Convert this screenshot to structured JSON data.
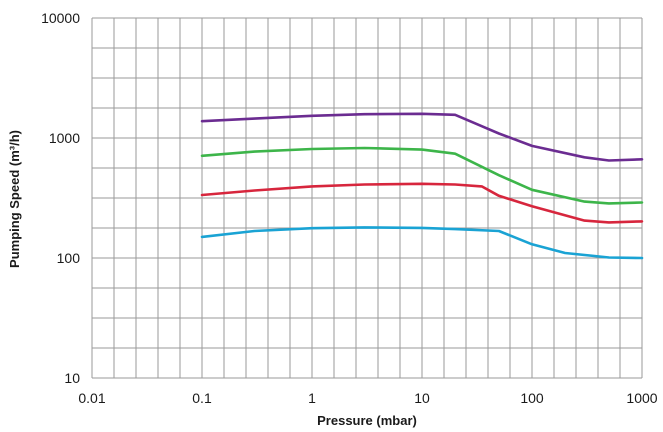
{
  "chart_data": {
    "type": "line",
    "xlabel": "Pressure (mbar)",
    "ylabel": "Pumping Speed (m³/h)",
    "xscale": "log",
    "yscale": "log",
    "xlim": [
      0.01,
      1000
    ],
    "ylim": [
      10,
      10000
    ],
    "grid": true,
    "x_ticks": [
      "0.01",
      "0.1",
      "1",
      "10",
      "100",
      "1000"
    ],
    "y_ticks": [
      "10",
      "100",
      "1000",
      "10000"
    ],
    "series": [
      {
        "color": "#6b2c91",
        "points": [
          [
            0.1,
            1380
          ],
          [
            0.3,
            1450
          ],
          [
            1,
            1530
          ],
          [
            3,
            1580
          ],
          [
            10,
            1590
          ],
          [
            20,
            1560
          ],
          [
            50,
            1090
          ],
          [
            100,
            860
          ],
          [
            300,
            690
          ],
          [
            500,
            650
          ],
          [
            1000,
            665
          ]
        ]
      },
      {
        "color": "#3db54a",
        "points": [
          [
            0.1,
            710
          ],
          [
            0.3,
            770
          ],
          [
            1,
            810
          ],
          [
            3,
            825
          ],
          [
            10,
            800
          ],
          [
            20,
            740
          ],
          [
            50,
            490
          ],
          [
            100,
            370
          ],
          [
            300,
            295
          ],
          [
            500,
            285
          ],
          [
            1000,
            290
          ]
        ]
      },
      {
        "color": "#d7263d",
        "points": [
          [
            0.1,
            335
          ],
          [
            0.3,
            365
          ],
          [
            1,
            395
          ],
          [
            3,
            410
          ],
          [
            10,
            415
          ],
          [
            20,
            410
          ],
          [
            35,
            395
          ],
          [
            50,
            330
          ],
          [
            100,
            270
          ],
          [
            300,
            205
          ],
          [
            500,
            198
          ],
          [
            1000,
            202
          ]
        ]
      },
      {
        "color": "#1aa3d4",
        "points": [
          [
            0.1,
            150
          ],
          [
            0.3,
            168
          ],
          [
            1,
            177
          ],
          [
            3,
            180
          ],
          [
            10,
            178
          ],
          [
            20,
            174
          ],
          [
            50,
            168
          ],
          [
            100,
            130
          ],
          [
            200,
            110
          ],
          [
            500,
            101
          ],
          [
            1000,
            100
          ]
        ]
      }
    ]
  }
}
